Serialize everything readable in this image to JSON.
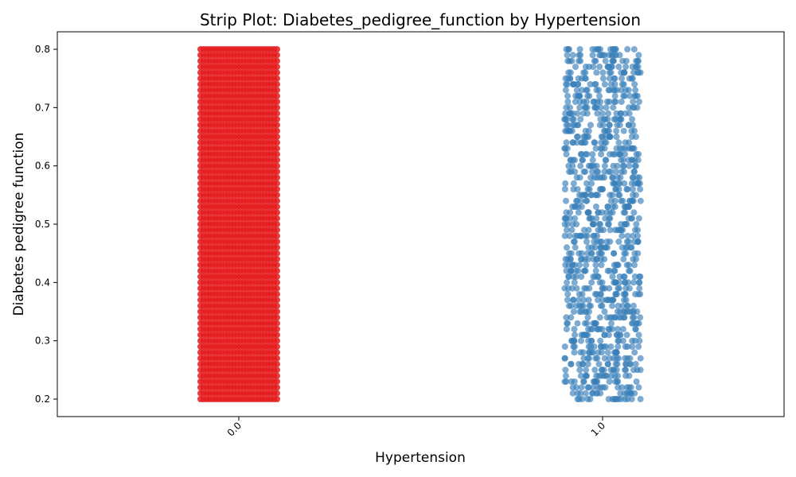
{
  "chart_data": {
    "type": "scatter",
    "subtype": "strip",
    "title": "Strip Plot: Diabetes_pedigree_function by Hypertension",
    "xlabel": "Hypertension",
    "ylabel": "Diabetes pedigree function",
    "categories": [
      "0.0",
      "1.0"
    ],
    "ylim": [
      0.17,
      0.83
    ],
    "yticks": [
      "0.2",
      "0.3",
      "0.4",
      "0.5",
      "0.6",
      "0.7",
      "0.8"
    ],
    "y_range_shown": [
      0.2,
      0.8
    ],
    "y_step": 0.01,
    "grid": false,
    "legend": "none",
    "series": [
      {
        "category": "0.0",
        "color": "#e41a1c",
        "y_min": 0.2,
        "y_max": 0.8,
        "density": "very dense"
      },
      {
        "category": "1.0",
        "color": "#377eb8",
        "y_min": 0.2,
        "y_max": 0.8,
        "density": "dense"
      }
    ]
  }
}
